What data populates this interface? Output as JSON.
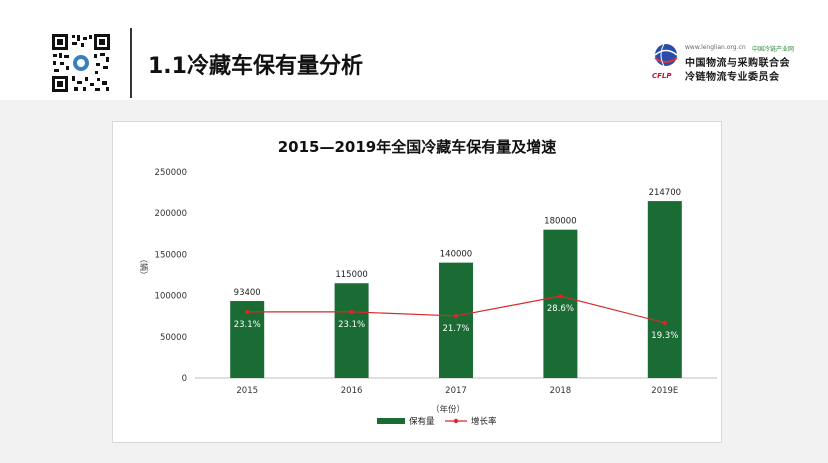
{
  "slide": {
    "title": "1.1冷藏车保有量分析"
  },
  "logo": {
    "website": "www.lenglian.org.cn",
    "tagline": "中国冷链产业网",
    "org_line1": "中国物流与采购联合会",
    "org_line2": "冷链物流专业委员会",
    "acronym": "CFLP"
  },
  "icons": {
    "qr": "qr-code-icon"
  },
  "colors": {
    "bar": "#1b6b35",
    "line": "#d62a2a",
    "axis": "#bfbfbf"
  },
  "chart_data": {
    "type": "bar",
    "title": "2015—2019年全国冷藏车保有量及增速",
    "xlabel": "（年份）",
    "ylabel": "（辆）",
    "categories": [
      "2015",
      "2016",
      "2017",
      "2018",
      "2019E"
    ],
    "ylim": [
      0,
      250000
    ],
    "yticks": [
      "0",
      "50000",
      "100000",
      "150000",
      "200000",
      "250000"
    ],
    "series": [
      {
        "name": "保有量",
        "type": "bar",
        "values": [
          93400,
          115000,
          140000,
          180000,
          214700
        ],
        "labels": [
          "93400",
          "115000",
          "140000",
          "180000",
          "214700"
        ]
      },
      {
        "name": "增长率",
        "type": "line",
        "values": [
          23.1,
          23.1,
          21.7,
          28.6,
          19.3
        ],
        "labels": [
          "23.1%",
          "23.1%",
          "21.7%",
          "28.6%",
          "19.3%"
        ],
        "unit": "%"
      }
    ],
    "legend": "bottom",
    "grid": false
  }
}
